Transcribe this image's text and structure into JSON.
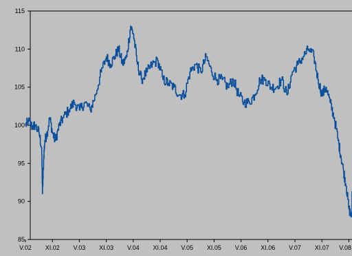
{
  "chart_data": {
    "type": "line",
    "title": "",
    "xlabel": "",
    "ylabel": "",
    "ylim": [
      85,
      115
    ],
    "yticks": [
      85,
      90,
      95,
      100,
      105,
      110,
      115
    ],
    "xticks": [
      "V.02",
      "XI.02",
      "V.03",
      "XI.03",
      "V.04",
      "XI.04",
      "V.05",
      "XI.05",
      "V.06",
      "XI.06",
      "V.07",
      "XI.07",
      "V.08"
    ],
    "grid": false,
    "legend": "none",
    "colors": {
      "background": "#c0c0c0",
      "line": "#0a4f9c",
      "axis": "#000000"
    },
    "series": [
      {
        "x": [
          0,
          0.1,
          0.25,
          0.35,
          0.5,
          0.6,
          0.63,
          0.68,
          0.72,
          0.8,
          0.9,
          1.0,
          1.1,
          1.25,
          1.4,
          1.6,
          1.8,
          2.0,
          2.2,
          2.4,
          2.6,
          2.8,
          3.0,
          3.15,
          3.3,
          3.45,
          3.6,
          3.75,
          3.9,
          4.0,
          4.15,
          4.3,
          4.5,
          4.7,
          4.9,
          5.1,
          5.3,
          5.5,
          5.7,
          5.9,
          6.1,
          6.3,
          6.5,
          6.7,
          6.9,
          7.1,
          7.3,
          7.5,
          7.7,
          7.9,
          8.1,
          8.3,
          8.5,
          8.7,
          8.9,
          9.1,
          9.3,
          9.5,
          9.7,
          9.9,
          10.1,
          10.3,
          10.5,
          10.7,
          10.85,
          11.0,
          11.15,
          11.3,
          11.45,
          11.6,
          11.7,
          11.8,
          11.9,
          12.0,
          12.1,
          12.2,
          12.3,
          12.4
        ],
        "values": [
          100,
          100.5,
          99.8,
          100,
          99,
          97,
          91,
          96,
          98,
          99,
          101,
          99,
          98,
          100,
          101,
          102,
          103,
          102,
          103,
          102,
          104,
          107,
          109,
          108,
          109,
          110,
          108,
          109,
          113,
          112,
          108,
          106,
          107,
          108,
          108.5,
          106,
          105.5,
          105,
          104,
          104,
          107,
          108,
          107,
          109,
          107,
          106,
          106,
          105,
          106,
          104,
          103,
          103,
          104,
          106,
          106,
          105,
          105,
          106,
          104,
          107,
          108,
          109,
          110,
          109,
          106,
          104,
          105,
          103,
          101,
          98,
          96,
          94,
          92,
          89,
          88,
          89.5,
          90.5,
          91
        ]
      }
    ]
  }
}
